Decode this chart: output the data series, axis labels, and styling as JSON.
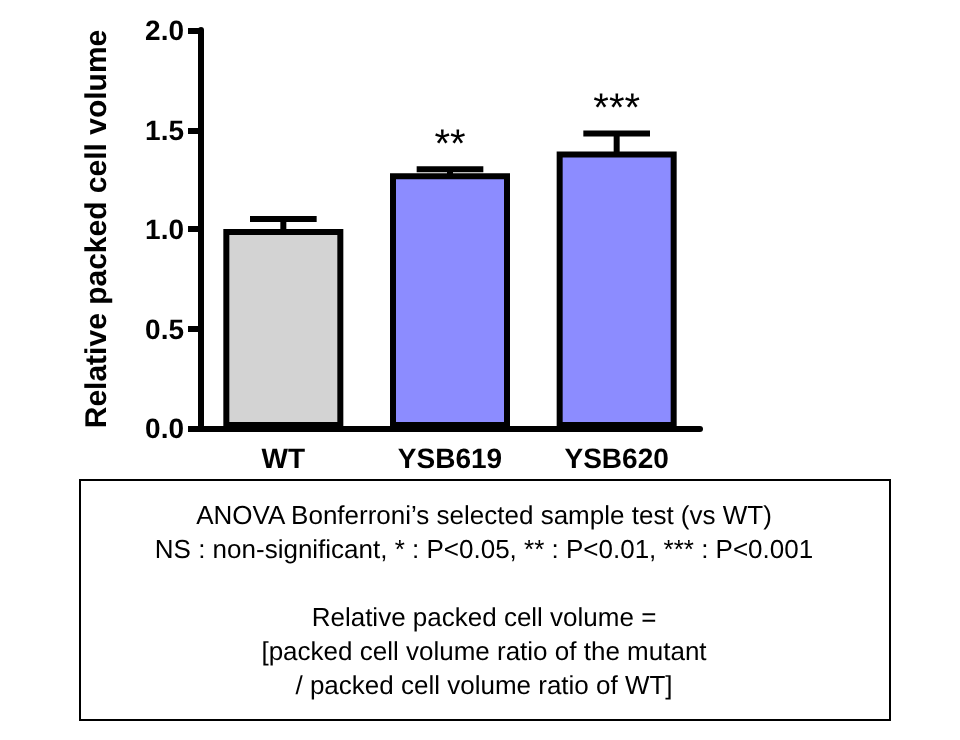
{
  "chart_data": {
    "type": "bar",
    "ylabel": "Relative packed cell volume",
    "categories": [
      "WT",
      "YSB619",
      "YSB620"
    ],
    "values": [
      1.0,
      1.28,
      1.39
    ],
    "errors": [
      0.05,
      0.02,
      0.09
    ],
    "colors": [
      "#d3d3d3",
      "#8c8cff",
      "#8c8cff"
    ],
    "ylim": [
      0,
      2.0
    ],
    "yticks": [
      {
        "value": 0,
        "label": "0.0"
      },
      {
        "value": 0.5,
        "label": "0.5"
      },
      {
        "value": 1.0,
        "label": "1.0"
      },
      {
        "value": 1.5,
        "label": "1.5"
      },
      {
        "value": 2.0,
        "label": "2.0"
      }
    ],
    "value_labels": [
      null,
      "**",
      "***"
    ],
    "grid": false,
    "annotations": [
      "ANOVA Bonferroni’s selected sample test (vs WT)",
      "NS : non-significant, * : P<0.05, ** : P<0.01, *** : P<0.001",
      "Relative packed cell volume =\n[packed cell volume ratio of the mutant\n/ packed cell volume ratio of WT]"
    ]
  }
}
